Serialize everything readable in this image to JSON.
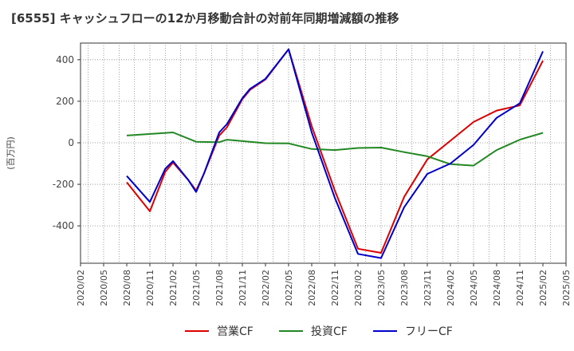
{
  "chart_data": {
    "type": "line",
    "title": "[6555]  キャッシュフローの12か月移動合計の対前年同期増減額の推移",
    "ylabel": "(百万円)",
    "xlabel": "",
    "ylim": [
      -580,
      480
    ],
    "yticks": [
      -400,
      -200,
      0,
      200,
      400
    ],
    "x_tick_labels": [
      "2020/02",
      "2020/05",
      "2020/08",
      "2020/11",
      "2021/02",
      "2021/05",
      "2021/08",
      "2021/11",
      "2022/02",
      "2022/05",
      "2022/08",
      "2022/11",
      "2023/02",
      "2023/05",
      "2023/08",
      "2023/11",
      "2024/02",
      "2024/05",
      "2024/08",
      "2024/11",
      "2025/02",
      "2025/05"
    ],
    "x": [
      "2020/08",
      "2020/11",
      "2021/01",
      "2021/02",
      "2021/04",
      "2021/05",
      "2021/06",
      "2021/08",
      "2021/09",
      "2021/11",
      "2021/12",
      "2022/02",
      "2022/05",
      "2022/08",
      "2022/11",
      "2023/02",
      "2023/05",
      "2023/08",
      "2023/11",
      "2024/02",
      "2024/05",
      "2024/08",
      "2024/11",
      "2025/02"
    ],
    "series": [
      {
        "name": "営業CF",
        "color": "#dd0000",
        "values": [
          -190,
          -330,
          -140,
          -95,
          -180,
          -230,
          -150,
          35,
          75,
          210,
          255,
          305,
          450,
          80,
          -230,
          -510,
          -530,
          -260,
          -80,
          10,
          100,
          155,
          180,
          395
        ]
      },
      {
        "name": "投資CF",
        "color": "#228822",
        "values": [
          35,
          null,
          null,
          50,
          null,
          5,
          null,
          3,
          15,
          null,
          5,
          -2,
          -3,
          -30,
          -35,
          -25,
          -23,
          -45,
          -65,
          -103,
          -110,
          -35,
          15,
          48
        ]
      },
      {
        "name": "フリーCF",
        "color": "#0000cc",
        "values": [
          -160,
          -285,
          -125,
          -88,
          -180,
          -237,
          -150,
          50,
          90,
          215,
          260,
          308,
          450,
          50,
          -265,
          -535,
          -555,
          -310,
          -150,
          -100,
          -10,
          120,
          190,
          440
        ]
      }
    ],
    "legend_position": "bottom",
    "grid": true
  }
}
